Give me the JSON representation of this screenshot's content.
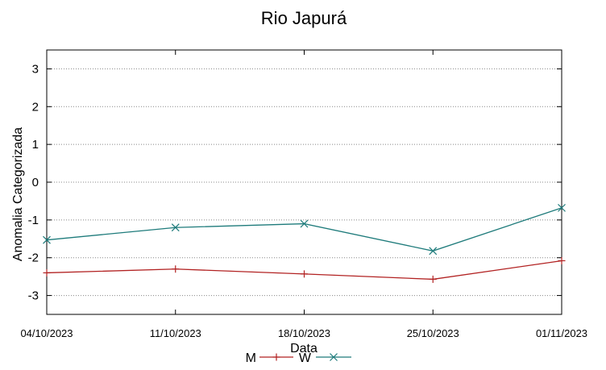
{
  "chart_data": {
    "type": "line",
    "title": "Rio Japurá",
    "xlabel": "Data",
    "ylabel": "Anomalia Categorizada",
    "categories": [
      "04/10/2023",
      "11/10/2023",
      "18/10/2023",
      "25/10/2023",
      "01/11/2023"
    ],
    "yticks": [
      3,
      2,
      1,
      0,
      -1,
      -2,
      -3
    ],
    "ylim": [
      -3.5,
      3.5
    ],
    "grid": "horizontal dotted",
    "legend_position": "bottom",
    "series": [
      {
        "name": "M",
        "values": [
          -2.4,
          -2.3,
          -2.43,
          -2.57,
          -2.08
        ],
        "color": "#b22222",
        "marker": "plus"
      },
      {
        "name": "W",
        "values": [
          -1.53,
          -1.2,
          -1.1,
          -1.82,
          -0.68
        ],
        "color": "#1e7b7b",
        "marker": "x"
      }
    ]
  }
}
